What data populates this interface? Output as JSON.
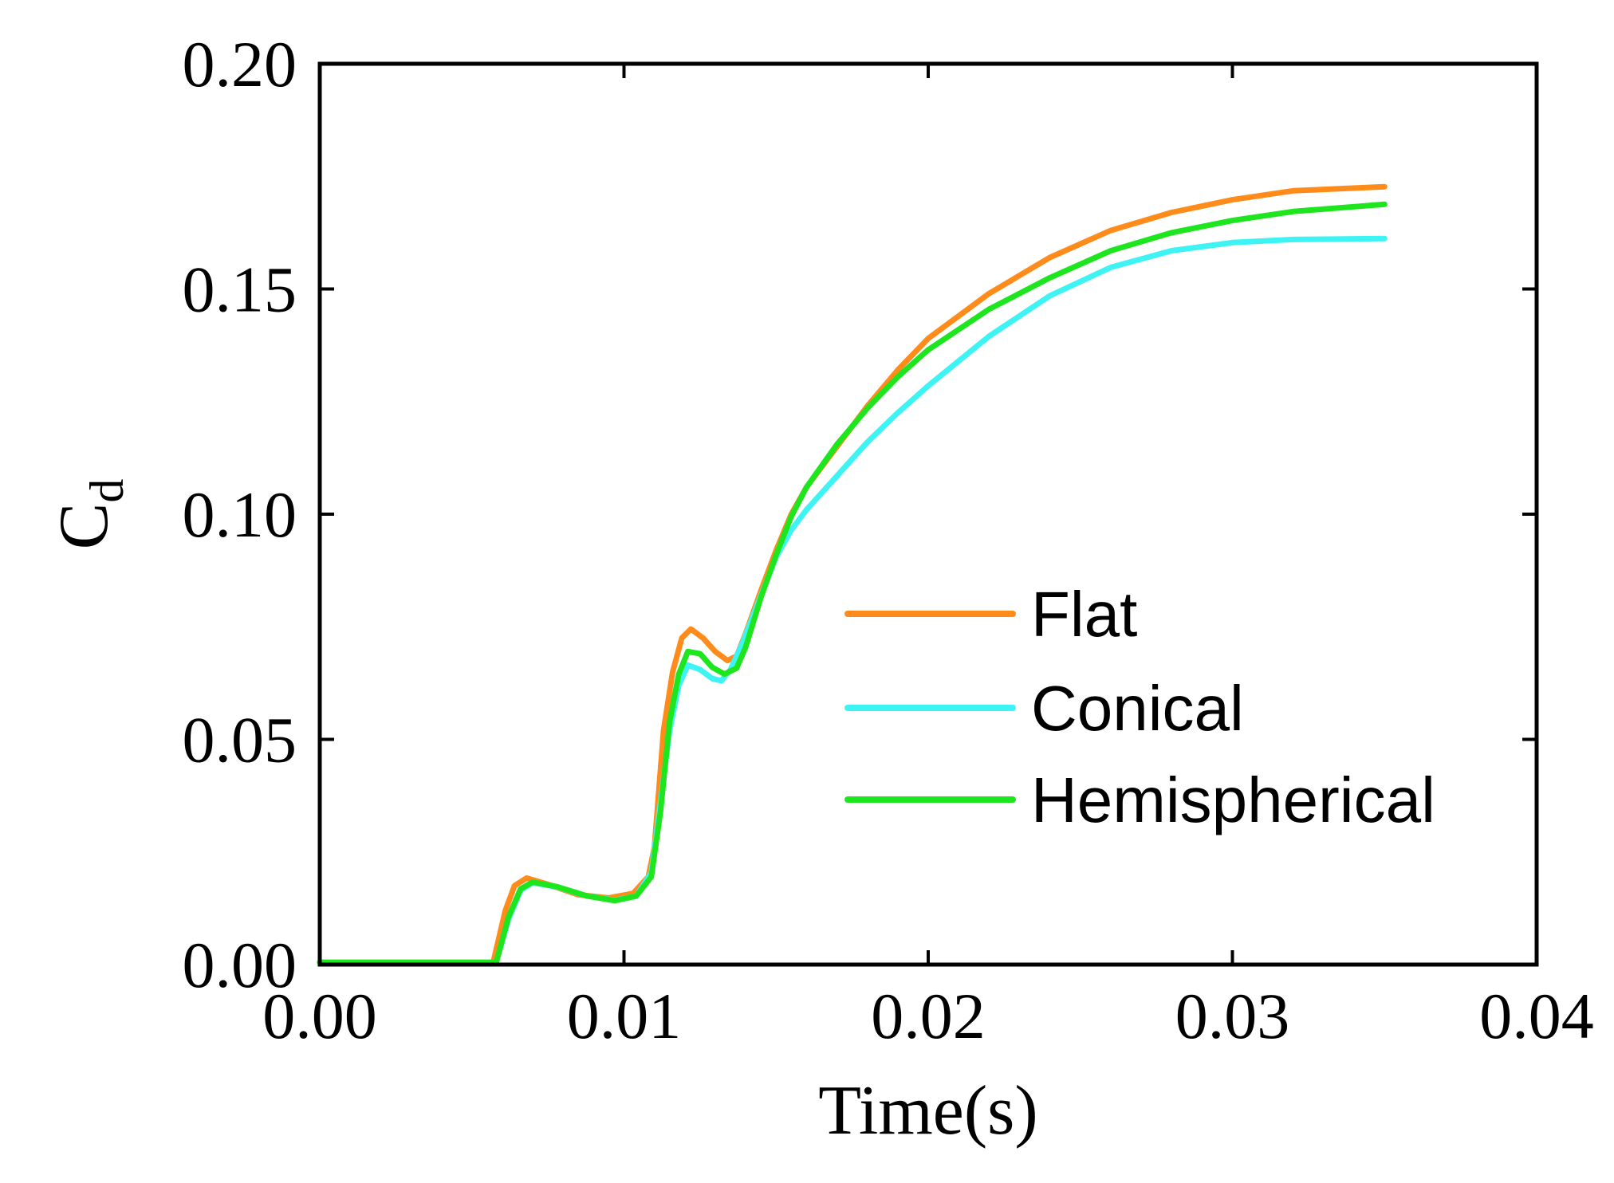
{
  "chart_data": {
    "type": "line",
    "xlabel": "Time(s)",
    "ylabel_main": "C",
    "ylabel_sub": "d",
    "xlim": [
      0.0,
      0.04
    ],
    "ylim": [
      0.0,
      0.2
    ],
    "xticks": [
      0.0,
      0.01,
      0.02,
      0.03,
      0.04
    ],
    "xtick_labels": [
      "0.00",
      "0.01",
      "0.02",
      "0.03",
      "0.04"
    ],
    "yticks": [
      0.0,
      0.05,
      0.1,
      0.15,
      0.2
    ],
    "ytick_labels": [
      "0.00",
      "0.05",
      "0.10",
      "0.15",
      "0.20"
    ],
    "grid": false,
    "legend_position": "center-right",
    "series": [
      {
        "name": "Flat",
        "color": "#FF8C1A",
        "points": [
          [
            0.0,
            0.0005
          ],
          [
            0.0057,
            0.0005
          ],
          [
            0.0061,
            0.012
          ],
          [
            0.0064,
            0.0175
          ],
          [
            0.0068,
            0.0192
          ],
          [
            0.0075,
            0.0178
          ],
          [
            0.0085,
            0.0155
          ],
          [
            0.0095,
            0.0148
          ],
          [
            0.0103,
            0.0158
          ],
          [
            0.0108,
            0.0195
          ],
          [
            0.011,
            0.026
          ],
          [
            0.0113,
            0.052
          ],
          [
            0.0116,
            0.065
          ],
          [
            0.0119,
            0.0725
          ],
          [
            0.0122,
            0.0745
          ],
          [
            0.0126,
            0.0725
          ],
          [
            0.013,
            0.0695
          ],
          [
            0.0134,
            0.0675
          ],
          [
            0.0137,
            0.0685
          ],
          [
            0.014,
            0.0735
          ],
          [
            0.0145,
            0.083
          ],
          [
            0.015,
            0.092
          ],
          [
            0.0155,
            0.1
          ],
          [
            0.016,
            0.106
          ],
          [
            0.017,
            0.115
          ],
          [
            0.018,
            0.124
          ],
          [
            0.019,
            0.132
          ],
          [
            0.02,
            0.139
          ],
          [
            0.022,
            0.149
          ],
          [
            0.024,
            0.157
          ],
          [
            0.026,
            0.163
          ],
          [
            0.028,
            0.167
          ],
          [
            0.03,
            0.1698
          ],
          [
            0.032,
            0.1718
          ],
          [
            0.035,
            0.1727
          ]
        ]
      },
      {
        "name": "Conical",
        "color": "#3EF3F3",
        "points": [
          [
            0.0,
            0.0005
          ],
          [
            0.0058,
            0.0005
          ],
          [
            0.0062,
            0.01
          ],
          [
            0.0066,
            0.0165
          ],
          [
            0.007,
            0.0182
          ],
          [
            0.0078,
            0.0172
          ],
          [
            0.0088,
            0.0152
          ],
          [
            0.0097,
            0.0143
          ],
          [
            0.0104,
            0.0152
          ],
          [
            0.0109,
            0.0205
          ],
          [
            0.0112,
            0.036
          ],
          [
            0.0115,
            0.052
          ],
          [
            0.0118,
            0.062
          ],
          [
            0.0121,
            0.0665
          ],
          [
            0.0125,
            0.0655
          ],
          [
            0.0129,
            0.0635
          ],
          [
            0.0132,
            0.063
          ],
          [
            0.0135,
            0.0655
          ],
          [
            0.0139,
            0.0715
          ],
          [
            0.0145,
            0.082
          ],
          [
            0.015,
            0.0905
          ],
          [
            0.0155,
            0.0965
          ],
          [
            0.016,
            0.101
          ],
          [
            0.017,
            0.1085
          ],
          [
            0.018,
            0.116
          ],
          [
            0.019,
            0.1225
          ],
          [
            0.02,
            0.1285
          ],
          [
            0.022,
            0.1395
          ],
          [
            0.024,
            0.1485
          ],
          [
            0.026,
            0.1548
          ],
          [
            0.028,
            0.1585
          ],
          [
            0.03,
            0.1603
          ],
          [
            0.032,
            0.161
          ],
          [
            0.035,
            0.1612
          ]
        ]
      },
      {
        "name": "Hemispherical",
        "color": "#1EE61E",
        "points": [
          [
            0.0,
            0.0005
          ],
          [
            0.0058,
            0.0005
          ],
          [
            0.0062,
            0.0105
          ],
          [
            0.0066,
            0.0168
          ],
          [
            0.007,
            0.0183
          ],
          [
            0.0078,
            0.0173
          ],
          [
            0.0088,
            0.0152
          ],
          [
            0.0097,
            0.0142
          ],
          [
            0.0104,
            0.0152
          ],
          [
            0.0109,
            0.0195
          ],
          [
            0.0112,
            0.034
          ],
          [
            0.0115,
            0.054
          ],
          [
            0.0118,
            0.0645
          ],
          [
            0.0121,
            0.0695
          ],
          [
            0.0125,
            0.069
          ],
          [
            0.0129,
            0.066
          ],
          [
            0.0133,
            0.0645
          ],
          [
            0.0137,
            0.0658
          ],
          [
            0.014,
            0.0705
          ],
          [
            0.0145,
            0.0815
          ],
          [
            0.015,
            0.091
          ],
          [
            0.0155,
            0.0995
          ],
          [
            0.016,
            0.106
          ],
          [
            0.017,
            0.1155
          ],
          [
            0.018,
            0.1235
          ],
          [
            0.019,
            0.1305
          ],
          [
            0.02,
            0.1365
          ],
          [
            0.022,
            0.1455
          ],
          [
            0.024,
            0.1525
          ],
          [
            0.026,
            0.1585
          ],
          [
            0.028,
            0.1625
          ],
          [
            0.03,
            0.1652
          ],
          [
            0.032,
            0.1672
          ],
          [
            0.035,
            0.1688
          ]
        ]
      }
    ]
  }
}
